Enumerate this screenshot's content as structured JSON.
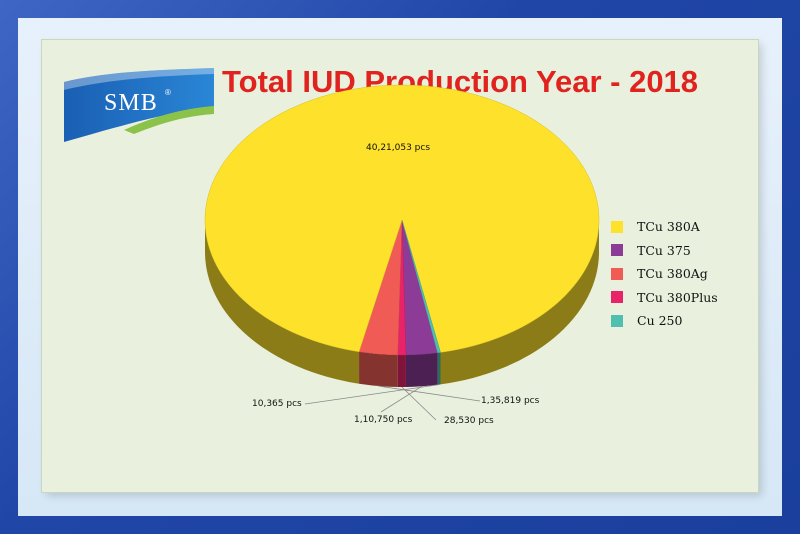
{
  "logo": {
    "text": "SMB",
    "mark": "®"
  },
  "chart_data": {
    "type": "pie",
    "title": "Total IUD Production Year - 2018",
    "legend_position": "right",
    "slices": [
      {
        "name": "TCu 380A",
        "value": 4021053,
        "label": "40,21,053 pcs",
        "color": "#fde12a"
      },
      {
        "name": "TCu 375",
        "value": 110750,
        "label": "1,10,750 pcs",
        "color": "#8c3b96"
      },
      {
        "name": "TCu 380Ag",
        "value": 135819,
        "label": "1,35,819 pcs",
        "color": "#f05c55"
      },
      {
        "name": "TCu 380Plus",
        "value": 28530,
        "label": "28,530 pcs",
        "color": "#e8236a"
      },
      {
        "name": "Cu 250",
        "value": 10365,
        "label": "10,365 pcs",
        "color": "#4fc0b0"
      }
    ]
  }
}
